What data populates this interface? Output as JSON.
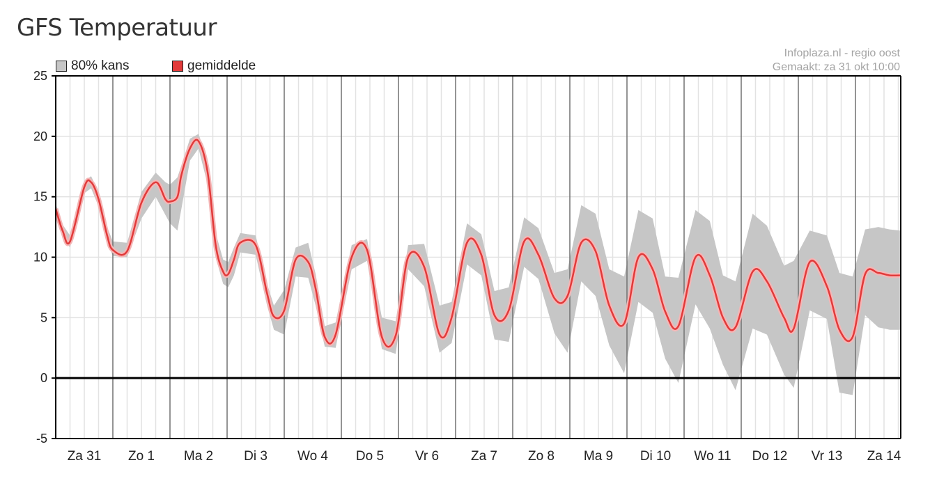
{
  "page": {
    "title": "GFS Temperatuur"
  },
  "credit": {
    "line1": "Infoplaza.nl - regio oost",
    "line2": "Gemaakt: za 31 okt 10:00"
  },
  "colors": {
    "band": "#c6c6c6",
    "mean": "#e23a3a",
    "mean_halo": "#f4b6b6",
    "grid": "#e2e2e2",
    "day_line": "#707070",
    "zero_line": "#000000"
  },
  "chart_data": {
    "type": "area",
    "title": "GFS Temperatuur",
    "ylim": [
      -5,
      25
    ],
    "y_ticks": [
      25,
      20,
      15,
      10,
      5,
      0,
      -5
    ],
    "x_unit": "days",
    "xlim": [
      0,
      14.8
    ],
    "categories": [
      "Za 31",
      "Zo 1",
      "Ma 2",
      "Di 3",
      "Wo 4",
      "Do 5",
      "Vr 6",
      "Za 7",
      "Zo 8",
      "Ma 9",
      "Di 10",
      "Wo 11",
      "Do 12",
      "Vr 13",
      "Za 14"
    ],
    "grid": true,
    "legend_position": "top-left",
    "series": [
      {
        "name": "gemiddelde",
        "x": [
          0.0,
          0.12,
          0.25,
          0.5,
          0.62,
          0.75,
          0.9,
          1.0,
          1.25,
          1.5,
          1.75,
          1.92,
          2.0,
          2.13,
          2.2,
          2.35,
          2.5,
          2.66,
          2.8,
          2.93,
          3.02,
          3.12,
          3.23,
          3.5,
          3.7,
          3.82,
          4.0,
          4.2,
          4.42,
          4.55,
          4.71,
          4.9,
          5.18,
          5.45,
          5.71,
          5.95,
          6.17,
          6.45,
          6.72,
          6.93,
          7.2,
          7.45,
          7.68,
          7.93,
          8.2,
          8.45,
          8.73,
          8.96,
          9.2,
          9.45,
          9.69,
          9.95,
          10.2,
          10.45,
          10.67,
          10.9,
          11.2,
          11.45,
          11.68,
          11.9,
          12.2,
          12.45,
          12.75,
          12.92,
          13.2,
          13.5,
          13.72,
          13.95,
          14.17,
          14.4,
          14.6,
          14.8
        ],
        "values": [
          14.0,
          12.2,
          11.3,
          15.8,
          16.2,
          14.8,
          11.8,
          10.6,
          10.5,
          14.5,
          16.2,
          14.8,
          14.6,
          15.0,
          16.8,
          19.0,
          19.6,
          17.0,
          11.0,
          8.8,
          8.6,
          9.8,
          11.2,
          11.0,
          7.0,
          5.1,
          5.6,
          9.8,
          9.6,
          7.4,
          3.4,
          3.6,
          10.0,
          10.6,
          3.4,
          3.5,
          10.0,
          9.2,
          3.6,
          5.0,
          11.2,
          10.2,
          5.2,
          5.6,
          11.3,
          10.2,
          6.6,
          6.8,
          11.2,
          10.5,
          6.0,
          4.5,
          10.0,
          9.0,
          5.5,
          4.3,
          10.0,
          8.5,
          5.0,
          4.2,
          8.8,
          8.0,
          5.0,
          4.1,
          9.6,
          7.6,
          4.0,
          3.4,
          8.6,
          8.7,
          8.5,
          8.5
        ]
      },
      {
        "name": "80% kans",
        "x": [
          0.0,
          0.12,
          0.25,
          0.5,
          0.62,
          0.75,
          0.9,
          1.0,
          1.25,
          1.5,
          1.75,
          1.92,
          2.0,
          2.13,
          2.2,
          2.35,
          2.5,
          2.66,
          2.8,
          2.93,
          3.02,
          3.12,
          3.23,
          3.5,
          3.7,
          3.82,
          4.0,
          4.2,
          4.42,
          4.55,
          4.71,
          4.9,
          5.18,
          5.45,
          5.71,
          5.95,
          6.17,
          6.45,
          6.72,
          6.93,
          7.2,
          7.45,
          7.68,
          7.93,
          8.2,
          8.45,
          8.73,
          8.96,
          9.2,
          9.45,
          9.69,
          9.95,
          10.2,
          10.45,
          10.67,
          10.9,
          11.2,
          11.45,
          11.68,
          11.9,
          12.2,
          12.45,
          12.75,
          12.92,
          13.2,
          13.5,
          13.72,
          13.95,
          14.17,
          14.4,
          14.6,
          14.8
        ],
        "upper": [
          14.4,
          12.7,
          11.8,
          16.3,
          16.7,
          15.4,
          12.5,
          11.3,
          11.2,
          15.4,
          17.0,
          16.2,
          16.0,
          16.6,
          17.6,
          19.8,
          20.2,
          18.0,
          12.0,
          9.8,
          9.6,
          10.8,
          12.0,
          11.8,
          7.8,
          6.0,
          7.3,
          10.8,
          11.2,
          8.6,
          4.3,
          4.6,
          11.0,
          11.5,
          5.0,
          4.7,
          11.0,
          11.1,
          6.0,
          6.3,
          12.8,
          11.9,
          7.2,
          7.5,
          13.3,
          12.4,
          8.7,
          9.0,
          14.3,
          13.6,
          9.0,
          8.4,
          13.9,
          13.2,
          8.4,
          8.3,
          13.9,
          13.0,
          8.5,
          8.0,
          13.6,
          12.6,
          9.3,
          9.7,
          12.2,
          11.8,
          8.7,
          8.4,
          12.3,
          12.5,
          12.3,
          12.2
        ],
        "lower": [
          13.6,
          11.7,
          10.8,
          15.3,
          15.7,
          14.2,
          11.2,
          10.1,
          10.0,
          13.2,
          15.0,
          13.5,
          12.8,
          12.2,
          14.0,
          18.0,
          19.0,
          16.0,
          10.0,
          7.8,
          7.5,
          8.5,
          10.4,
          10.2,
          6.0,
          4.0,
          3.6,
          8.4,
          8.3,
          6.0,
          2.6,
          2.5,
          9.0,
          9.7,
          2.4,
          2.0,
          9.0,
          7.6,
          2.1,
          2.9,
          9.4,
          8.5,
          3.2,
          3.0,
          9.2,
          8.2,
          3.7,
          2.1,
          8.0,
          6.8,
          2.7,
          0.4,
          6.3,
          5.4,
          1.6,
          -0.4,
          6.1,
          4.1,
          1.1,
          -1.0,
          4.1,
          3.6,
          0.3,
          -0.8,
          5.6,
          4.9,
          -1.2,
          -1.4,
          5.2,
          4.2,
          4.0,
          4.0
        ]
      }
    ]
  }
}
